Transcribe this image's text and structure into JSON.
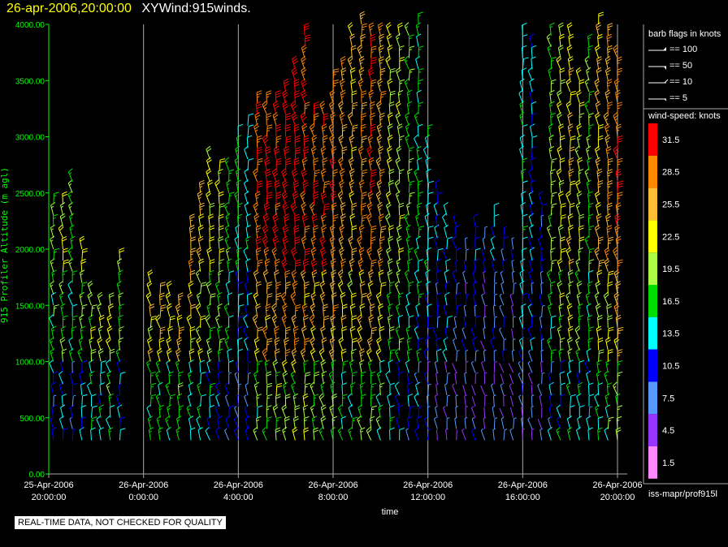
{
  "header": {
    "date": "26-apr-2006,20:00:00",
    "product": "XYWind:915winds."
  },
  "legend": {
    "barb_title": "barb flags in knots",
    "barb_flags": [
      "== 100",
      "== 50",
      "== 10",
      "== 5"
    ],
    "speed_title": "wind-speed: knots",
    "speed_bins": [
      {
        "label": "31.5",
        "color": "#ff0000"
      },
      {
        "label": "28.5",
        "color": "#ff8800"
      },
      {
        "label": "25.5",
        "color": "#ffbb33"
      },
      {
        "label": "22.5",
        "color": "#ffff00"
      },
      {
        "label": "19.5",
        "color": "#aaff44"
      },
      {
        "label": "16.5",
        "color": "#00dd00"
      },
      {
        "label": "13.5",
        "color": "#00ffff"
      },
      {
        "label": "10.5",
        "color": "#0000ff"
      },
      {
        "label": "7.5",
        "color": "#5599ff"
      },
      {
        "label": "4.5",
        "color": "#9933ff"
      },
      {
        "label": "1.5",
        "color": "#ff88ff"
      }
    ]
  },
  "source_label": "iss-mapr/prof915l",
  "footer_note": "REAL-TIME DATA, NOT CHECKED FOR QUALITY",
  "chart_data": {
    "type": "scatter",
    "xlabel": "time",
    "ylabel": "915 Profiler Altitude (m agl)",
    "ylim": [
      0,
      4000
    ],
    "xlim": [
      0,
      24
    ],
    "y_ticks": [
      "0.00",
      "500.00",
      "1000.00",
      "1500.00",
      "2000.00",
      "2500.00",
      "3000.00",
      "3500.00",
      "4000.00"
    ],
    "x_ticks": [
      {
        "hour": 0,
        "date": "25-Apr-2006",
        "time": "20:00:00"
      },
      {
        "hour": 4,
        "date": "26-Apr-2006",
        "time": "0:00:00"
      },
      {
        "hour": 8,
        "date": "26-Apr-2006",
        "time": "4:00:00"
      },
      {
        "hour": 12,
        "date": "26-Apr-2006",
        "time": "8:00:00"
      },
      {
        "hour": 16,
        "date": "26-Apr-2006",
        "time": "12:00:00"
      },
      {
        "hour": 20,
        "date": "26-Apr-2006",
        "time": "16:00:00"
      },
      {
        "hour": 24,
        "date": "26-Apr-2006",
        "time": "20:00:00"
      }
    ],
    "gridlines": "vertical",
    "colors": {
      "axis": "#00ff00",
      "grid": "#aaaaaa"
    },
    "profiles": [
      {
        "h": 0.2,
        "tops": [
          2400
        ],
        "speed": 19
      },
      {
        "h": 0.6,
        "tops": [
          2450
        ],
        "speed": 21
      },
      {
        "h": 1.0,
        "tops": [
          2600
        ],
        "speed": 18
      },
      {
        "h": 1.4,
        "tops": [
          2050
        ],
        "speed": 22
      },
      {
        "h": 1.8,
        "tops": [
          1600
        ],
        "speed": 23
      },
      {
        "h": 2.2,
        "tops": [
          1500
        ],
        "speed": 24
      },
      {
        "h": 2.6,
        "tops": [
          1500
        ],
        "speed": 26
      },
      {
        "h": 3.0,
        "tops": [
          1900
        ],
        "speed": 20
      },
      {
        "h": 4.3,
        "tops": [
          1700
        ],
        "speed": 27
      },
      {
        "h": 4.7,
        "tops": [
          1650
        ],
        "speed": 28
      },
      {
        "h": 5.1,
        "tops": [
          1600
        ],
        "speed": 28
      },
      {
        "h": 5.5,
        "tops": [
          1500
        ],
        "speed": 30
      },
      {
        "h": 6.0,
        "tops": [
          2200
        ],
        "speed": 26
      },
      {
        "h": 6.4,
        "tops": [
          2500
        ],
        "speed": 25
      },
      {
        "h": 6.8,
        "tops": [
          2800
        ],
        "speed": 22
      },
      {
        "h": 7.2,
        "tops": [
          2700
        ],
        "speed": 21
      },
      {
        "h": 7.6,
        "tops": [
          2700
        ],
        "speed": 17
      },
      {
        "h": 8.0,
        "tops": [
          3000
        ],
        "speed": 15
      },
      {
        "h": 8.4,
        "tops": [
          3100
        ],
        "speed": 14
      },
      {
        "h": 8.8,
        "tops": [
          3300
        ],
        "speed": 29
      },
      {
        "h": 9.2,
        "tops": [
          3350
        ],
        "speed": 31
      },
      {
        "h": 9.6,
        "tops": [
          3300
        ],
        "speed": 31
      },
      {
        "h": 10.0,
        "tops": [
          3400
        ],
        "speed": 32
      },
      {
        "h": 10.4,
        "tops": [
          3600
        ],
        "speed": 32
      },
      {
        "h": 10.8,
        "tops": [
          3900
        ],
        "speed": 31
      },
      {
        "h": 11.2,
        "tops": [
          3200
        ],
        "speed": 30
      },
      {
        "h": 11.6,
        "tops": [
          3250
        ],
        "speed": 30
      },
      {
        "h": 12.0,
        "tops": [
          3500
        ],
        "speed": 29
      },
      {
        "h": 12.4,
        "tops": [
          3600
        ],
        "speed": 27
      },
      {
        "h": 12.8,
        "tops": [
          3900
        ],
        "speed": 25
      },
      {
        "h": 13.2,
        "tops": [
          4000
        ],
        "speed": 28
      },
      {
        "h": 13.6,
        "tops": [
          3900
        ],
        "speed": 29
      },
      {
        "h": 14.0,
        "tops": [
          3900
        ],
        "speed": 27
      },
      {
        "h": 14.4,
        "tops": [
          3900
        ],
        "speed": 22
      },
      {
        "h": 14.8,
        "tops": [
          3950
        ],
        "speed": 20
      },
      {
        "h": 15.2,
        "tops": [
          3900
        ],
        "speed": 17
      },
      {
        "h": 15.6,
        "tops": [
          4000
        ],
        "speed": 16
      },
      {
        "h": 16.0,
        "tops": [
          3000
        ],
        "speed": 14
      },
      {
        "h": 16.4,
        "tops": [
          2500
        ],
        "speed": 12
      },
      {
        "h": 16.8,
        "tops": [
          2300
        ],
        "speed": 13
      },
      {
        "h": 17.2,
        "tops": [
          2200
        ],
        "speed": 11
      },
      {
        "h": 17.6,
        "tops": [
          2000
        ],
        "speed": 9
      },
      {
        "h": 18.0,
        "tops": [
          2200
        ],
        "speed": 11
      },
      {
        "h": 18.4,
        "tops": [
          2100
        ],
        "speed": 8
      },
      {
        "h": 18.8,
        "tops": [
          2300
        ],
        "speed": 12
      },
      {
        "h": 19.2,
        "tops": [
          2100
        ],
        "speed": 10
      },
      {
        "h": 19.6,
        "tops": [
          2000
        ],
        "speed": 8
      },
      {
        "h": 20.0,
        "tops": [
          3950
        ],
        "speed": 14
      },
      {
        "h": 20.4,
        "tops": [
          3800
        ],
        "speed": 12
      },
      {
        "h": 20.8,
        "tops": [
          2400
        ],
        "speed": 10
      },
      {
        "h": 21.2,
        "tops": [
          3900
        ],
        "speed": 18
      },
      {
        "h": 21.6,
        "tops": [
          3950
        ],
        "speed": 22
      },
      {
        "h": 22.0,
        "tops": [
          3900
        ],
        "speed": 24
      },
      {
        "h": 22.4,
        "tops": [
          3500
        ],
        "speed": 21
      },
      {
        "h": 22.8,
        "tops": [
          3850
        ],
        "speed": 18
      },
      {
        "h": 23.2,
        "tops": [
          4000
        ],
        "speed": 24
      },
      {
        "h": 23.6,
        "tops": [
          3950
        ],
        "speed": 27
      },
      {
        "h": 24.0,
        "tops": [
          3700
        ],
        "speed": 30
      }
    ]
  }
}
